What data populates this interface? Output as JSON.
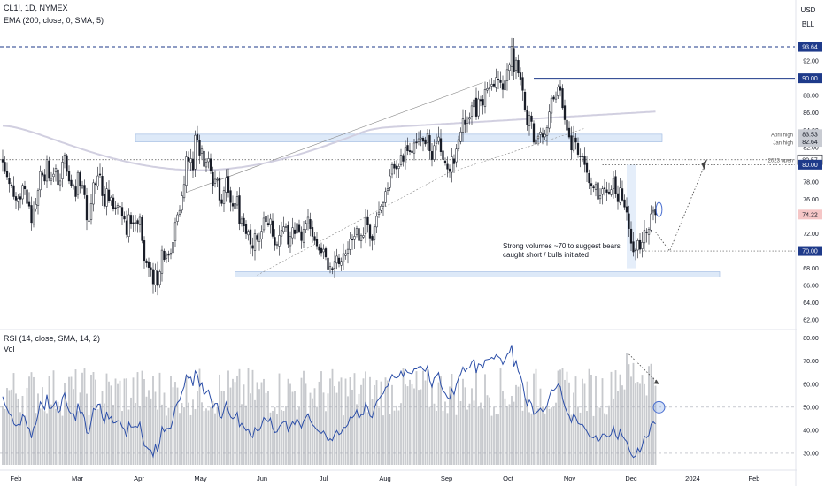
{
  "header": {
    "symbol_line": "CL1!, 1D, NYMEX",
    "ema_line": "EMA (200, close, 0, SMA, 5)",
    "rsi_line": "RSI (14, close, SMA, 14, 2)",
    "vol_line": "Vol",
    "currency": "USD",
    "unit": "BLL"
  },
  "colors": {
    "up": "#ffffff",
    "down": "#131722",
    "ema": "#d1cfe0",
    "rsi": "#2b4ea8",
    "volume": "#c7c9cd",
    "level_line": "#1e3a8a",
    "zone_fill": "#dde9f8",
    "current_price_tag": "#f5c6c6"
  },
  "chart_data": [
    {
      "type": "candlestick",
      "pane": "price",
      "ylim": [
        61,
        96
      ],
      "price_axis_ticks": [
        62,
        64,
        66,
        68,
        72,
        74,
        76,
        78,
        82,
        84,
        86,
        88,
        92
      ],
      "x_axis_labels": [
        "Feb",
        "Mar",
        "Apr",
        "May",
        "Jun",
        "Jul",
        "Aug",
        "Sep",
        "Oct",
        "Nov",
        "Dec",
        "2024",
        "Feb"
      ],
      "price_tags": [
        "93.64",
        "90.00",
        "83.53",
        "82.64",
        "80.57",
        "80.00",
        "74.22",
        "70.00"
      ],
      "annotations": {
        "april_high": "April high",
        "jan_high": "Jan high",
        "open_2023": "2023 open",
        "note_line1": "Strong volumes ~70 to suggest bears",
        "note_line2": "caught short / bulls initiated"
      },
      "closes": [
        80.3,
        79.2,
        78.6,
        77.8,
        77.6,
        76.3,
        75.9,
        76.1,
        76.0,
        77.6,
        77.2,
        75.5,
        75.2,
        73.3,
        74.9,
        75.4,
        77.0,
        79.2,
        78.8,
        78.1,
        80.6,
        78.4,
        78.4,
        78.9,
        79.6,
        77.7,
        78.1,
        80.3,
        81.1,
        79.2,
        78.1,
        77.6,
        77.6,
        76.3,
        79.1,
        77.5,
        77.6,
        76.5,
        73.6,
        73.5,
        75.5,
        77.9,
        77.7,
        78.7,
        78.8,
        76.4,
        75.2,
        77.2,
        75.8,
        76.2,
        74.9,
        75.0,
        75.3,
        75.2,
        74.1,
        73.7,
        71.9,
        74.2,
        73.2,
        73.2,
        73.3,
        73.1,
        73.9,
        71.2,
        68.9,
        68.6,
        68.1,
        67.9,
        66.2,
        67.8,
        66.0,
        67.6,
        70.1,
        69.0,
        69.5,
        69.5,
        69.6,
        71.0,
        73.3,
        74.2,
        74.7,
        76.4,
        77.7,
        80.9,
        80.4,
        80.7,
        79.4,
        83.4,
        82.9,
        81.1,
        81.8,
        79.8,
        80.3,
        80.7,
        79.3,
        77.6,
        78.3,
        78.3,
        75.9,
        75.5,
        77.0,
        78.5,
        76.8,
        75.6,
        75.2,
        75.5,
        76.3,
        73.1,
        73.7,
        72.9,
        72.0,
        72.3,
        70.8,
        70.3,
        72.0,
        71.3,
        71.4,
        72.3,
        73.8,
        73.4,
        73.0,
        73.7,
        71.7,
        70.7,
        70.8,
        71.8,
        72.4,
        72.8,
        72.8,
        70.8,
        71.7,
        72.7,
        72.0,
        73.2,
        72.3,
        71.2,
        72.5,
        73.2,
        73.9,
        72.6,
        71.7,
        71.2,
        70.6,
        70.1,
        69.8,
        70.2,
        69.3,
        67.9,
        68.2,
        67.8,
        68.8,
        69.4,
        68.5,
        68.8,
        69.7,
        69.7,
        70.2,
        71.4,
        71.3,
        71.7,
        72.6,
        71.2,
        71.8,
        71.8,
        73.8,
        73.0,
        71.5,
        71.2,
        72.8,
        74.0,
        74.5,
        75.2,
        75.6,
        76.9,
        77.2,
        78.7,
        80.0,
        79.6,
        79.5,
        79.8,
        81.1,
        80.4,
        82.0,
        81.6,
        81.5,
        81.4,
        82.5,
        82.5,
        83.0,
        83.1,
        82.7,
        82.4,
        83.6,
        81.6,
        80.6,
        82.2,
        82.6,
        83.2,
        81.5,
        80.6,
        80.2,
        79.5,
        79.2,
        80.9,
        80.1,
        81.8,
        82.9,
        83.8,
        85.3,
        84.7,
        85.4,
        85.5,
        86.8,
        87.5,
        85.6,
        87.6,
        87.4,
        86.9,
        88.7,
        88.8,
        88.9,
        89.3,
        89.1,
        90.1,
        89.8,
        89.5,
        88.7,
        89.7,
        91.0,
        91.6,
        93.7,
        90.8,
        92.1,
        90.6,
        89.9,
        88.6,
        86.3,
        84.6,
        85.7,
        85.0,
        82.6,
        82.9,
        83.3,
        83.8,
        83.2,
        83.5,
        84.3,
        86.1,
        87.7,
        87.6,
        88.1,
        89.0,
        88.6,
        86.6,
        85.2,
        84.0,
        83.2,
        81.7,
        83.3,
        82.6,
        81.2,
        80.9,
        80.9,
        80.0,
        79.1,
        77.9,
        77.5,
        77.3,
        77.7,
        76.0,
        76.4,
        77.2,
        77.2,
        76.8,
        76.7,
        77.1,
        78.4,
        76.6,
        75.7,
        77.3,
        75.9,
        75.1,
        74.5,
        72.6,
        70.9,
        69.9,
        70.1,
        71.2,
        70.2,
        71.0,
        72.4,
        72.1,
        72.5,
        74.3,
        74.7,
        74.2
      ]
    },
    {
      "type": "line",
      "pane": "rsi",
      "ylim": [
        25,
        81
      ],
      "axis_ticks": [
        30,
        40,
        50,
        60,
        70,
        80
      ],
      "guide_levels": [
        70,
        50,
        30
      ],
      "rsi_values": [
        54.6,
        51.2,
        49.3,
        47.0,
        46.3,
        42.8,
        41.9,
        42.5,
        42.3,
        46.8,
        45.7,
        41.5,
        40.8,
        36.6,
        41.2,
        42.6,
        46.8,
        52.3,
        50.9,
        49.0,
        55.4,
        49.5,
        49.5,
        50.8,
        52.5,
        47.5,
        48.6,
        54.2,
        56.1,
        50.9,
        48.3,
        47.1,
        47.2,
        44.1,
        51.6,
        47.6,
        47.8,
        45.2,
        38.9,
        38.6,
        43.8,
        49.4,
        48.9,
        51.2,
        51.4,
        45.7,
        43.2,
        48.0,
        44.9,
        45.9,
        43.1,
        43.3,
        44.1,
        43.9,
        41.4,
        40.5,
        37.0,
        43.4,
        41.4,
        41.4,
        41.7,
        41.3,
        43.4,
        37.5,
        33.2,
        32.7,
        31.7,
        31.4,
        28.6,
        33.9,
        30.6,
        34.9,
        41.5,
        39.4,
        40.7,
        40.8,
        41.0,
        44.8,
        50.1,
        52.0,
        53.0,
        56.4,
        58.9,
        64.0,
        62.5,
        63.0,
        59.2,
        65.7,
        64.2,
        59.1,
        60.6,
        55.4,
        56.5,
        57.4,
        53.9,
        49.8,
        51.6,
        51.6,
        46.0,
        45.3,
        48.9,
        52.2,
        48.4,
        45.8,
        45.0,
        45.8,
        47.7,
        41.6,
        43.0,
        41.5,
        39.8,
        40.5,
        37.7,
        36.8,
        41.1,
        39.8,
        40.0,
        42.1,
        45.5,
        44.5,
        43.7,
        45.3,
        40.9,
        39.0,
        39.3,
        41.5,
        42.8,
        43.7,
        43.7,
        39.5,
        41.6,
        43.8,
        42.4,
        45.0,
        43.2,
        41.0,
        44.0,
        45.6,
        47.1,
        44.3,
        42.4,
        41.4,
        40.2,
        39.3,
        38.7,
        39.7,
        37.9,
        35.3,
        36.3,
        35.5,
        38.3,
        39.9,
        38.1,
        38.8,
        41.2,
        41.2,
        42.5,
        45.7,
        45.4,
        46.5,
        48.8,
        45.1,
        46.8,
        46.8,
        51.8,
        49.7,
        46.2,
        45.5,
        49.6,
        52.4,
        53.5,
        55.0,
        55.9,
        58.5,
        59.1,
        61.9,
        64.2,
        63.0,
        62.7,
        63.3,
        65.6,
        63.3,
        66.3,
        65.1,
        64.8,
        64.5,
        66.6,
        66.6,
        67.5,
        67.7,
        66.4,
        65.6,
        68.0,
        61.6,
        58.8,
        62.7,
        63.6,
        65.0,
        59.6,
        57.1,
        56.0,
        54.2,
        53.5,
        57.9,
        55.4,
        59.8,
        62.5,
        64.5,
        67.4,
        65.5,
        66.9,
        67.1,
        69.6,
        70.8,
        64.9,
        68.8,
        68.4,
        67.1,
        70.5,
        70.7,
        70.9,
        71.6,
        71.0,
        72.8,
        71.9,
        71.1,
        68.6,
        70.5,
        72.9,
        73.8,
        77.0,
        67.7,
        70.1,
        65.6,
        63.7,
        60.0,
        54.3,
        50.7,
        53.1,
        51.5,
        46.9,
        47.5,
        48.4,
        49.5,
        48.2,
        48.9,
        50.7,
        54.5,
        57.6,
        57.3,
        58.3,
        60.0,
        58.9,
        53.7,
        50.4,
        47.8,
        46.2,
        43.4,
        47.0,
        45.6,
        43.0,
        42.5,
        42.5,
        41.0,
        39.5,
        37.6,
        37.0,
        36.7,
        37.7,
        35.0,
        36.1,
        38.3,
        38.3,
        37.4,
        37.2,
        38.3,
        41.6,
        37.9,
        36.1,
        40.3,
        37.6,
        36.2,
        35.1,
        32.0,
        29.5,
        28.2,
        28.8,
        32.2,
        30.5,
        33.2,
        37.4,
        36.8,
        37.9,
        42.6,
        43.6,
        42.7
      ]
    }
  ]
}
